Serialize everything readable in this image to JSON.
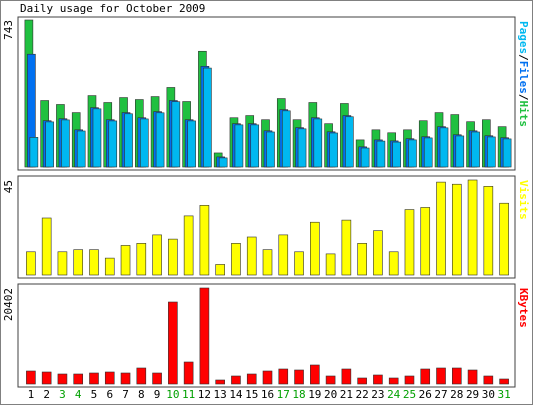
{
  "chart_data": {
    "type": "bar",
    "title": "Daily usage for October 2009",
    "categories": [
      "1",
      "2",
      "3",
      "4",
      "5",
      "6",
      "7",
      "8",
      "9",
      "10",
      "11",
      "12",
      "13",
      "14",
      "15",
      "16",
      "17",
      "18",
      "19",
      "20",
      "21",
      "22",
      "23",
      "24",
      "25",
      "26",
      "27",
      "28",
      "29",
      "30",
      "31"
    ],
    "category_colors": [
      "#000000",
      "#000000",
      "#00a000",
      "#00a000",
      "#000000",
      "#000000",
      "#000000",
      "#000000",
      "#000000",
      "#00a000",
      "#00a000",
      "#000000",
      "#000000",
      "#000000",
      "#000000",
      "#000000",
      "#00a000",
      "#00a000",
      "#000000",
      "#000000",
      "#000000",
      "#000000",
      "#000000",
      "#00a000",
      "#00a000",
      "#000000",
      "#000000",
      "#000000",
      "#000000",
      "#000000",
      "#00a000"
    ],
    "panels": [
      {
        "ylim": [
          0,
          743
        ],
        "yticks": [
          743
        ],
        "legend_separator": "/",
        "series": [
          {
            "name": "Hits",
            "color": "#20c040",
            "values": [
              743,
              336,
              316,
              275,
              361,
              326,
              351,
              341,
              356,
              402,
              331,
              585,
              71,
              249,
              260,
              239,
              346,
              239,
              326,
              219,
              321,
              137,
              188,
              173,
              188,
              234,
              275,
              265,
              229,
              239,
              204
            ]
          },
          {
            "name": "Files",
            "color": "#0070f0",
            "values": [
              570,
              234,
              244,
              188,
              300,
              239,
              275,
              249,
              280,
              336,
              239,
              509,
              51,
              219,
              219,
              183,
              290,
              199,
              249,
              178,
              260,
              102,
              137,
              132,
              143,
              153,
              204,
              163,
              183,
              158,
              148
            ]
          },
          {
            "name": "Pages",
            "color": "#00b8f0",
            "values": [
              150,
              228,
              238,
              182,
              294,
              233,
              269,
              243,
              274,
              330,
              233,
              500,
              46,
              213,
              213,
              177,
              284,
              193,
              243,
              172,
              254,
              96,
              131,
              126,
              137,
              147,
              198,
              157,
              177,
              152,
              142
            ]
          }
        ]
      },
      {
        "ylim": [
          0,
          45
        ],
        "yticks": [
          45
        ],
        "series": [
          {
            "name": "Visits",
            "color": "#ffff00",
            "values": [
              11,
              27,
              11,
              12,
              12,
              8,
              14,
              15,
              19,
              17,
              28,
              33,
              5,
              15,
              18,
              12,
              19,
              11,
              25,
              10,
              26,
              15,
              21,
              11,
              31,
              32,
              44,
              43,
              45,
              42,
              34
            ]
          }
        ]
      },
      {
        "ylim": [
          0,
          20402
        ],
        "yticks": [
          20402
        ],
        "series": [
          {
            "name": "KBytes",
            "color": "#ff0000",
            "values": [
              2763,
              2550,
              2125,
              2125,
              2338,
              2550,
              2338,
              3400,
              2338,
              17425,
              4675,
              20402,
              850,
              1700,
              2125,
              2763,
              3188,
              2975,
              4038,
              1700,
              3188,
              1275,
              1913,
              1275,
              1700,
              3188,
              3400,
              3400,
              2975,
              1700,
              1063
            ]
          }
        ]
      }
    ]
  }
}
